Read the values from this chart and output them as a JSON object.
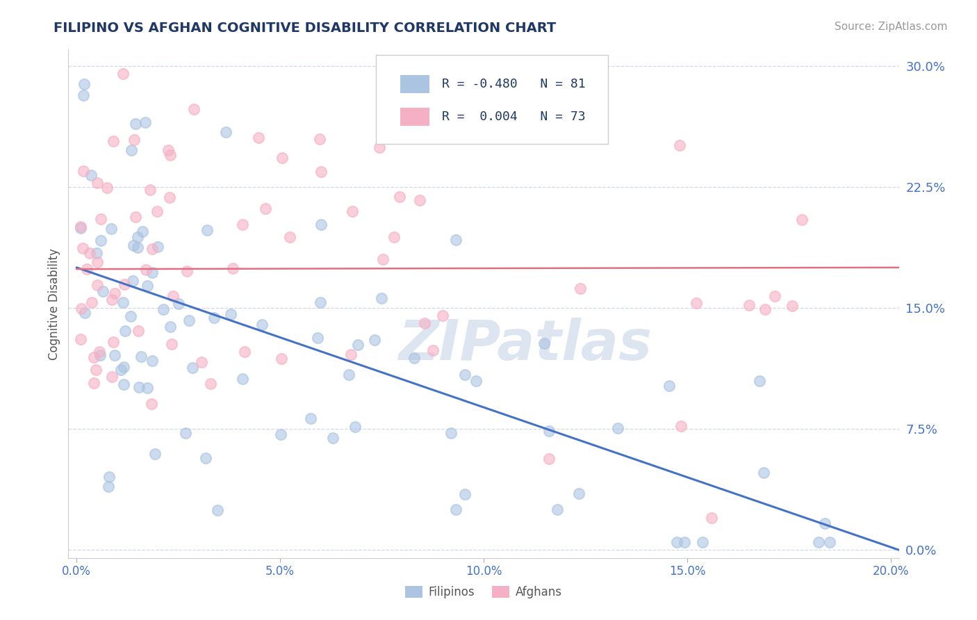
{
  "title": "FILIPINO VS AFGHAN COGNITIVE DISABILITY CORRELATION CHART",
  "source": "Source: ZipAtlas.com",
  "xlabel": "",
  "ylabel": "Cognitive Disability",
  "xlim": [
    -0.002,
    0.202
  ],
  "ylim": [
    -0.005,
    0.31
  ],
  "xticks": [
    0.0,
    0.05,
    0.1,
    0.15,
    0.2
  ],
  "xtick_labels": [
    "0.0%",
    "5.0%",
    "10.0%",
    "15.0%",
    "20.0%"
  ],
  "yticks": [
    0.0,
    0.075,
    0.15,
    0.225,
    0.3
  ],
  "ytick_labels": [
    "0.0%",
    "7.5%",
    "15.0%",
    "22.5%",
    "30.0%"
  ],
  "filipino_R": -0.48,
  "filipino_N": 81,
  "afghan_R": 0.004,
  "afghan_N": 73,
  "filipino_color": "#aac4e2",
  "afghan_color": "#f5b0c5",
  "filipino_line_color": "#4472c4",
  "afghan_line_color": "#e07080",
  "title_color": "#1f3864",
  "source_color": "#999999",
  "tick_color": "#4472c4",
  "grid_color": "#d0d8e8",
  "watermark_color": "#dde5f0",
  "background_color": "#ffffff",
  "legend_R_color": "#1f3864",
  "legend_N_color": "#4472c4"
}
